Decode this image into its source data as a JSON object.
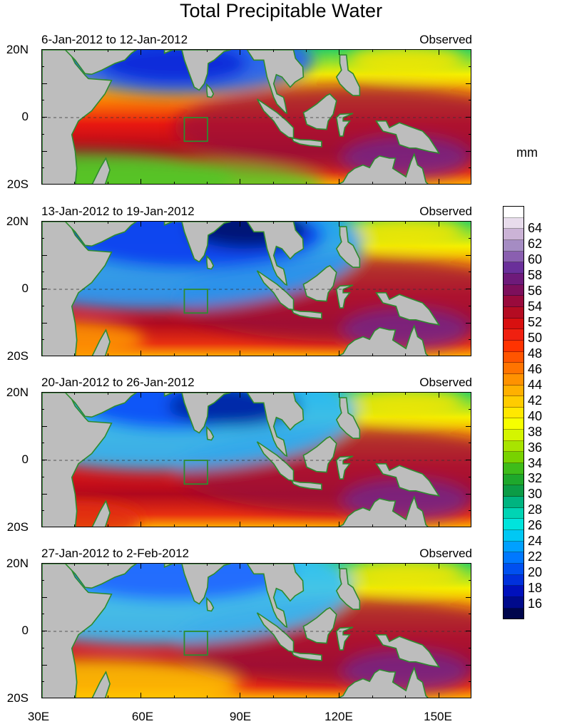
{
  "title": "Total Precipitable Water",
  "panels": [
    {
      "date": "6-Jan-2012 to 12-Jan-2012",
      "status": "Observed"
    },
    {
      "date": "13-Jan-2012 to 19-Jan-2012",
      "status": "Observed"
    },
    {
      "date": "20-Jan-2012 to 26-Jan-2012",
      "status": "Observed"
    },
    {
      "date": "27-Jan-2012 to 2-Feb-2012",
      "status": "Observed"
    }
  ],
  "lat_labels": [
    "20N",
    "0",
    "20S"
  ],
  "lon_labels": [
    "30E",
    "60E",
    "90E",
    "120E",
    "150E"
  ],
  "colorbar": {
    "units": "mm",
    "labels": [
      "64",
      "62",
      "60",
      "58",
      "56",
      "54",
      "52",
      "50",
      "48",
      "46",
      "44",
      "42",
      "40",
      "38",
      "36",
      "34",
      "32",
      "30",
      "28",
      "26",
      "24",
      "22",
      "20",
      "18",
      "16"
    ],
    "colors": [
      "#ffffff",
      "#e8dcec",
      "#cbb3d6",
      "#a58cc3",
      "#8a5fb0",
      "#6a2f9a",
      "#6e1a7a",
      "#7d0f5c",
      "#990a3c",
      "#b40c22",
      "#d81010",
      "#f02010",
      "#ff3300",
      "#ff5500",
      "#ff7400",
      "#ff9200",
      "#ffb000",
      "#ffcc00",
      "#ffe800",
      "#f6ff00",
      "#d4f500",
      "#a8e400",
      "#78d200",
      "#3ebc1a",
      "#1ea82c",
      "#0c9c46",
      "#00b480",
      "#00d4b4",
      "#00e4dc",
      "#00c8f4",
      "#00a0ff",
      "#0078ff",
      "#0050f0",
      "#0030dc",
      "#0010bc",
      "#000a8c",
      "#00064c"
    ]
  },
  "region_colors": {
    "land": "#bdbdbd",
    "coast": "#2e8b2e"
  }
}
